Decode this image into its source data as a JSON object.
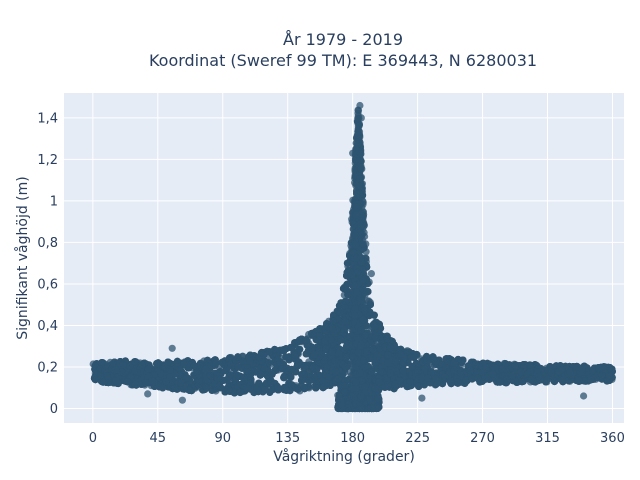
{
  "chart_data": {
    "type": "scatter",
    "title_line1": "År 1979 - 2019",
    "title_line2": "Koordinat (Sweref 99 TM): E 369443, N 6280031",
    "xlabel": "Vågriktning (grader)",
    "ylabel": "Signifikant våghöjd (m)",
    "xlim": [
      -20,
      368
    ],
    "ylim": [
      -0.07,
      1.52
    ],
    "x_ticks": [
      0,
      45,
      90,
      135,
      180,
      225,
      270,
      315,
      360
    ],
    "x_tick_labels": [
      "0",
      "45",
      "90",
      "135",
      "180",
      "225",
      "270",
      "315",
      "360"
    ],
    "y_ticks": [
      0,
      0.2,
      0.4,
      0.6,
      0.8,
      1.0,
      1.2,
      1.4
    ],
    "y_tick_labels": [
      "0",
      "0,2",
      "0,4",
      "0,6",
      "0,8",
      "1",
      "1,2",
      "1,4"
    ],
    "marker_color": "#2e5470",
    "marker_opacity": 0.75,
    "grid": true,
    "point_count": 9000,
    "envelope": {
      "x": [
        0,
        20,
        45,
        65,
        90,
        110,
        135,
        150,
        160,
        165,
        170,
        173,
        176,
        178,
        180,
        182,
        184,
        186,
        188,
        190,
        193,
        197,
        205,
        215,
        225,
        240,
        270,
        315,
        360
      ],
      "y_max": [
        0.22,
        0.23,
        0.22,
        0.23,
        0.24,
        0.26,
        0.3,
        0.36,
        0.4,
        0.44,
        0.5,
        0.58,
        0.7,
        0.85,
        1.0,
        1.25,
        1.47,
        1.2,
        0.92,
        0.7,
        0.52,
        0.42,
        0.34,
        0.29,
        0.26,
        0.25,
        0.22,
        0.21,
        0.2
      ],
      "y_min": [
        0.1,
        0.08,
        0.06,
        0.04,
        0.02,
        0.01,
        0.0,
        0.0,
        0.0,
        0.0,
        0.0,
        0.0,
        0.0,
        0.0,
        0.0,
        0.0,
        0.0,
        0.0,
        0.0,
        0.0,
        0.0,
        0.0,
        0.01,
        0.03,
        0.05,
        0.07,
        0.09,
        0.1,
        0.11
      ]
    },
    "outliers": [
      {
        "x": 55,
        "y": 0.29
      },
      {
        "x": 193,
        "y": 0.65
      },
      {
        "x": 185,
        "y": 1.46
      },
      {
        "x": 186,
        "y": 1.4
      },
      {
        "x": 184,
        "y": 1.36
      },
      {
        "x": 180,
        "y": 1.23
      },
      {
        "x": 183,
        "y": 1.2
      },
      {
        "x": 38,
        "y": 0.07
      },
      {
        "x": 62,
        "y": 0.04
      },
      {
        "x": 340,
        "y": 0.06
      },
      {
        "x": 228,
        "y": 0.05
      }
    ]
  }
}
